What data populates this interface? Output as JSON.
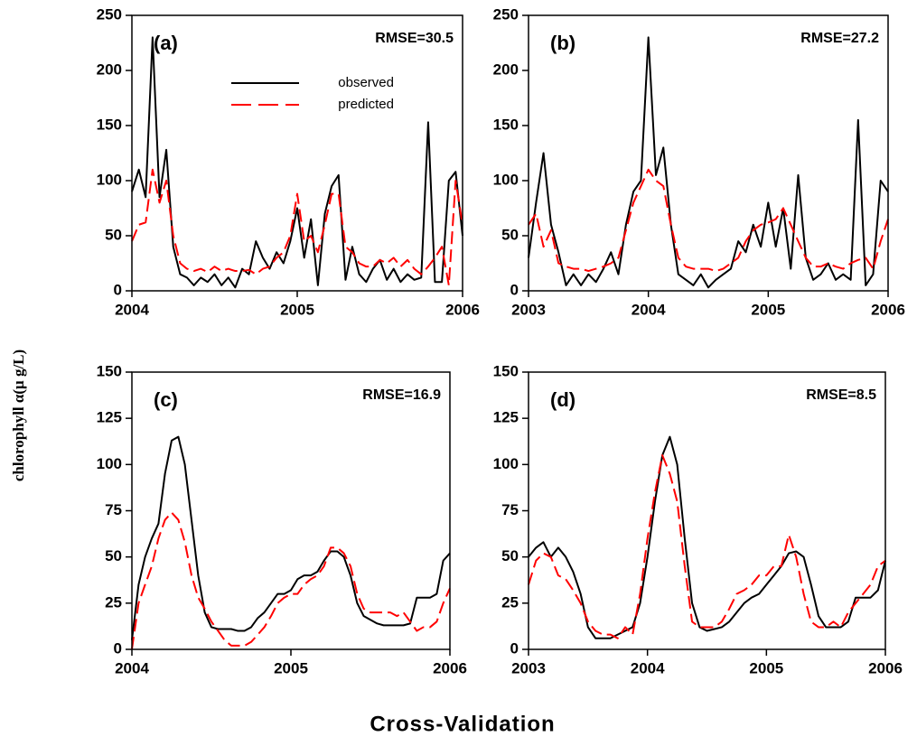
{
  "ylabel": "chlorophyll α(μ g/L)",
  "xlabel": "Cross-Validation",
  "chart_data": [
    {
      "type": "line",
      "label": "(a)",
      "annotation": "RMSE=30.5",
      "legend": "upper center",
      "x": [
        2004,
        2004.042,
        2004.083,
        2004.125,
        2004.167,
        2004.208,
        2004.25,
        2004.292,
        2004.333,
        2004.375,
        2004.417,
        2004.458,
        2004.5,
        2004.542,
        2004.583,
        2004.625,
        2004.667,
        2004.708,
        2004.75,
        2004.792,
        2004.833,
        2004.875,
        2004.917,
        2004.958,
        2005,
        2005.042,
        2005.083,
        2005.125,
        2005.167,
        2005.208,
        2005.25,
        2005.292,
        2005.333,
        2005.375,
        2005.417,
        2005.458,
        2005.5,
        2005.542,
        2005.583,
        2005.625,
        2005.667,
        2005.708,
        2005.75,
        2005.792,
        2005.833,
        2005.875,
        2005.917,
        2005.958,
        2006
      ],
      "xlim": [
        2004,
        2006
      ],
      "xticks": [
        2004,
        2005,
        2006
      ],
      "ylim": [
        0,
        250
      ],
      "yticks": [
        0,
        50,
        100,
        150,
        200,
        250
      ],
      "series": [
        {
          "name": "observed",
          "color": "#000000",
          "values": [
            90,
            110,
            85,
            230,
            85,
            128,
            40,
            15,
            12,
            5,
            12,
            8,
            15,
            5,
            12,
            3,
            20,
            15,
            45,
            30,
            20,
            35,
            25,
            45,
            75,
            30,
            65,
            5,
            70,
            95,
            105,
            10,
            40,
            15,
            8,
            20,
            28,
            10,
            20,
            8,
            15,
            10,
            12,
            153,
            8,
            8,
            100,
            108,
            50
          ]
        },
        {
          "name": "predicted",
          "color": "#ff0000",
          "values": [
            45,
            60,
            62,
            110,
            80,
            100,
            50,
            25,
            20,
            18,
            20,
            17,
            22,
            18,
            20,
            18,
            18,
            19,
            15,
            20,
            22,
            30,
            35,
            50,
            88,
            45,
            50,
            35,
            60,
            88,
            88,
            40,
            35,
            25,
            22,
            22,
            28,
            25,
            30,
            22,
            28,
            20,
            15,
            22,
            30,
            40,
            5,
            100,
            60
          ]
        }
      ]
    },
    {
      "type": "line",
      "label": "(b)",
      "annotation": "RMSE=27.2",
      "x": [
        2003,
        2003.063,
        2003.125,
        2003.188,
        2003.25,
        2003.313,
        2003.375,
        2003.438,
        2003.5,
        2003.563,
        2003.625,
        2003.688,
        2003.75,
        2003.813,
        2003.875,
        2003.938,
        2004,
        2004.063,
        2004.125,
        2004.188,
        2004.25,
        2004.313,
        2004.375,
        2004.438,
        2004.5,
        2004.563,
        2004.625,
        2004.688,
        2004.75,
        2004.813,
        2004.875,
        2004.938,
        2005,
        2005.063,
        2005.125,
        2005.188,
        2005.25,
        2005.313,
        2005.375,
        2005.438,
        2005.5,
        2005.563,
        2005.625,
        2005.688,
        2005.75,
        2005.813,
        2005.875,
        2005.938,
        2006
      ],
      "xlim": [
        2003,
        2006
      ],
      "xticks": [
        2003,
        2004,
        2005,
        2006
      ],
      "ylim": [
        0,
        250
      ],
      "yticks": [
        0,
        50,
        100,
        150,
        200,
        250
      ],
      "series": [
        {
          "color": "#000000",
          "values": [
            30,
            80,
            125,
            60,
            35,
            5,
            15,
            5,
            15,
            8,
            20,
            35,
            15,
            60,
            90,
            100,
            230,
            105,
            130,
            60,
            15,
            10,
            5,
            15,
            3,
            10,
            15,
            20,
            45,
            35,
            60,
            40,
            80,
            40,
            75,
            20,
            105,
            30,
            10,
            15,
            25,
            10,
            15,
            10,
            155,
            5,
            15,
            100,
            90
          ]
        },
        {
          "color": "#ff0000",
          "values": [
            60,
            70,
            40,
            55,
            25,
            22,
            20,
            20,
            18,
            20,
            22,
            25,
            30,
            55,
            80,
            95,
            110,
            100,
            95,
            60,
            30,
            22,
            20,
            20,
            20,
            18,
            20,
            25,
            30,
            45,
            55,
            60,
            62,
            65,
            75,
            60,
            45,
            30,
            22,
            22,
            25,
            22,
            20,
            25,
            28,
            30,
            20,
            45,
            65
          ]
        }
      ]
    },
    {
      "type": "line",
      "label": "(c)",
      "annotation": "RMSE=16.9",
      "x": [
        2004,
        2004.042,
        2004.083,
        2004.125,
        2004.167,
        2004.208,
        2004.25,
        2004.292,
        2004.333,
        2004.375,
        2004.417,
        2004.458,
        2004.5,
        2004.542,
        2004.583,
        2004.625,
        2004.667,
        2004.708,
        2004.75,
        2004.792,
        2004.833,
        2004.875,
        2004.917,
        2004.958,
        2005,
        2005.042,
        2005.083,
        2005.125,
        2005.167,
        2005.208,
        2005.25,
        2005.292,
        2005.333,
        2005.375,
        2005.417,
        2005.458,
        2005.5,
        2005.542,
        2005.583,
        2005.625,
        2005.667,
        2005.708,
        2005.75,
        2005.792,
        2005.833,
        2005.875,
        2005.917,
        2005.958,
        2006
      ],
      "xlim": [
        2004,
        2006
      ],
      "xticks": [
        2004,
        2005,
        2006
      ],
      "ylim": [
        0,
        150
      ],
      "yticks": [
        0,
        25,
        50,
        75,
        100,
        125,
        150
      ],
      "series": [
        {
          "color": "#000000",
          "values": [
            5,
            35,
            50,
            60,
            68,
            95,
            113,
            115,
            100,
            70,
            40,
            20,
            12,
            11,
            11,
            11,
            10,
            10,
            12,
            17,
            20,
            25,
            30,
            30,
            32,
            38,
            40,
            40,
            42,
            48,
            53,
            53,
            50,
            40,
            25,
            18,
            16,
            14,
            13,
            13,
            13,
            13,
            14,
            28,
            28,
            28,
            30,
            48,
            52
          ]
        },
        {
          "color": "#ff0000",
          "values": [
            0,
            25,
            35,
            45,
            60,
            70,
            74,
            70,
            58,
            40,
            28,
            22,
            15,
            10,
            5,
            2,
            2,
            2,
            4,
            8,
            12,
            18,
            25,
            28,
            30,
            30,
            35,
            38,
            40,
            45,
            55,
            55,
            52,
            45,
            30,
            22,
            20,
            20,
            20,
            20,
            18,
            20,
            15,
            10,
            12,
            12,
            15,
            25,
            33
          ]
        }
      ]
    },
    {
      "type": "line",
      "label": "(d)",
      "annotation": "RMSE=8.5",
      "x": [
        2003,
        2003.063,
        2003.125,
        2003.188,
        2003.25,
        2003.313,
        2003.375,
        2003.438,
        2003.5,
        2003.563,
        2003.625,
        2003.688,
        2003.75,
        2003.813,
        2003.875,
        2003.938,
        2004,
        2004.063,
        2004.125,
        2004.188,
        2004.25,
        2004.313,
        2004.375,
        2004.438,
        2004.5,
        2004.563,
        2004.625,
        2004.688,
        2004.75,
        2004.813,
        2004.875,
        2004.938,
        2005,
        2005.063,
        2005.125,
        2005.188,
        2005.25,
        2005.313,
        2005.375,
        2005.438,
        2005.5,
        2005.563,
        2005.625,
        2005.688,
        2005.75,
        2005.813,
        2005.875,
        2005.938,
        2006
      ],
      "xlim": [
        2003,
        2006
      ],
      "xticks": [
        2003,
        2004,
        2005,
        2006
      ],
      "ylim": [
        0,
        150
      ],
      "yticks": [
        0,
        25,
        50,
        75,
        100,
        125,
        150
      ],
      "series": [
        {
          "color": "#000000",
          "values": [
            50,
            55,
            58,
            50,
            55,
            50,
            42,
            30,
            12,
            6,
            6,
            6,
            8,
            10,
            12,
            25,
            50,
            80,
            105,
            115,
            100,
            60,
            25,
            12,
            10,
            11,
            12,
            15,
            20,
            25,
            28,
            30,
            35,
            40,
            45,
            52,
            53,
            50,
            35,
            18,
            12,
            12,
            12,
            15,
            28,
            28,
            28,
            32,
            48
          ]
        },
        {
          "color": "#ff0000",
          "values": [
            35,
            48,
            52,
            50,
            40,
            38,
            32,
            25,
            15,
            10,
            8,
            8,
            6,
            12,
            8,
            30,
            60,
            85,
            105,
            95,
            80,
            45,
            15,
            12,
            12,
            12,
            15,
            22,
            30,
            32,
            35,
            40,
            40,
            45,
            45,
            62,
            50,
            30,
            15,
            12,
            12,
            15,
            12,
            20,
            25,
            30,
            35,
            45,
            48
          ]
        }
      ]
    }
  ]
}
